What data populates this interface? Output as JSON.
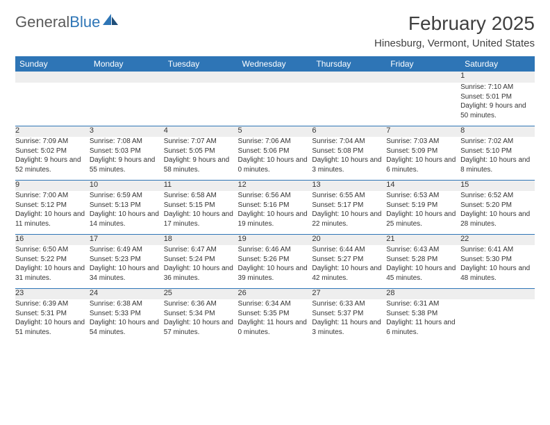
{
  "logo": {
    "text_general": "General",
    "text_blue": "Blue"
  },
  "title": "February 2025",
  "location": "Hinesburg, Vermont, United States",
  "colors": {
    "header_bg": "#2e75b6",
    "header_fg": "#ffffff",
    "daynum_bg": "#eeeeee",
    "text": "#333333",
    "rule": "#2e75b6",
    "logo_gray": "#5a5a5a",
    "logo_blue": "#2e75b6"
  },
  "weekdays": [
    "Sunday",
    "Monday",
    "Tuesday",
    "Wednesday",
    "Thursday",
    "Friday",
    "Saturday"
  ],
  "weeks": [
    {
      "nums": [
        "",
        "",
        "",
        "",
        "",
        "",
        "1"
      ],
      "cells": [
        "",
        "",
        "",
        "",
        "",
        "",
        "Sunrise: 7:10 AM\nSunset: 5:01 PM\nDaylight: 9 hours and 50 minutes."
      ]
    },
    {
      "nums": [
        "2",
        "3",
        "4",
        "5",
        "6",
        "7",
        "8"
      ],
      "cells": [
        "Sunrise: 7:09 AM\nSunset: 5:02 PM\nDaylight: 9 hours and 52 minutes.",
        "Sunrise: 7:08 AM\nSunset: 5:03 PM\nDaylight: 9 hours and 55 minutes.",
        "Sunrise: 7:07 AM\nSunset: 5:05 PM\nDaylight: 9 hours and 58 minutes.",
        "Sunrise: 7:06 AM\nSunset: 5:06 PM\nDaylight: 10 hours and 0 minutes.",
        "Sunrise: 7:04 AM\nSunset: 5:08 PM\nDaylight: 10 hours and 3 minutes.",
        "Sunrise: 7:03 AM\nSunset: 5:09 PM\nDaylight: 10 hours and 6 minutes.",
        "Sunrise: 7:02 AM\nSunset: 5:10 PM\nDaylight: 10 hours and 8 minutes."
      ]
    },
    {
      "nums": [
        "9",
        "10",
        "11",
        "12",
        "13",
        "14",
        "15"
      ],
      "cells": [
        "Sunrise: 7:00 AM\nSunset: 5:12 PM\nDaylight: 10 hours and 11 minutes.",
        "Sunrise: 6:59 AM\nSunset: 5:13 PM\nDaylight: 10 hours and 14 minutes.",
        "Sunrise: 6:58 AM\nSunset: 5:15 PM\nDaylight: 10 hours and 17 minutes.",
        "Sunrise: 6:56 AM\nSunset: 5:16 PM\nDaylight: 10 hours and 19 minutes.",
        "Sunrise: 6:55 AM\nSunset: 5:17 PM\nDaylight: 10 hours and 22 minutes.",
        "Sunrise: 6:53 AM\nSunset: 5:19 PM\nDaylight: 10 hours and 25 minutes.",
        "Sunrise: 6:52 AM\nSunset: 5:20 PM\nDaylight: 10 hours and 28 minutes."
      ]
    },
    {
      "nums": [
        "16",
        "17",
        "18",
        "19",
        "20",
        "21",
        "22"
      ],
      "cells": [
        "Sunrise: 6:50 AM\nSunset: 5:22 PM\nDaylight: 10 hours and 31 minutes.",
        "Sunrise: 6:49 AM\nSunset: 5:23 PM\nDaylight: 10 hours and 34 minutes.",
        "Sunrise: 6:47 AM\nSunset: 5:24 PM\nDaylight: 10 hours and 36 minutes.",
        "Sunrise: 6:46 AM\nSunset: 5:26 PM\nDaylight: 10 hours and 39 minutes.",
        "Sunrise: 6:44 AM\nSunset: 5:27 PM\nDaylight: 10 hours and 42 minutes.",
        "Sunrise: 6:43 AM\nSunset: 5:28 PM\nDaylight: 10 hours and 45 minutes.",
        "Sunrise: 6:41 AM\nSunset: 5:30 PM\nDaylight: 10 hours and 48 minutes."
      ]
    },
    {
      "nums": [
        "23",
        "24",
        "25",
        "26",
        "27",
        "28",
        ""
      ],
      "cells": [
        "Sunrise: 6:39 AM\nSunset: 5:31 PM\nDaylight: 10 hours and 51 minutes.",
        "Sunrise: 6:38 AM\nSunset: 5:33 PM\nDaylight: 10 hours and 54 minutes.",
        "Sunrise: 6:36 AM\nSunset: 5:34 PM\nDaylight: 10 hours and 57 minutes.",
        "Sunrise: 6:34 AM\nSunset: 5:35 PM\nDaylight: 11 hours and 0 minutes.",
        "Sunrise: 6:33 AM\nSunset: 5:37 PM\nDaylight: 11 hours and 3 minutes.",
        "Sunrise: 6:31 AM\nSunset: 5:38 PM\nDaylight: 11 hours and 6 minutes.",
        ""
      ]
    }
  ]
}
